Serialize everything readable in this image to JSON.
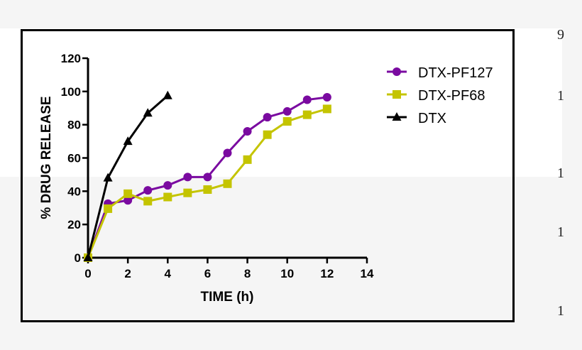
{
  "chart_data": {
    "type": "line",
    "title": "",
    "xlabel": "TIME (h)",
    "ylabel": "% DRUG RELEASE",
    "xlim": [
      0,
      14
    ],
    "ylim": [
      0,
      120
    ],
    "xticks": [
      0,
      2,
      4,
      6,
      8,
      10,
      12,
      14
    ],
    "yticks": [
      0,
      20,
      40,
      60,
      80,
      100,
      120
    ],
    "grid": false,
    "legend_position": "top-right",
    "series": [
      {
        "name": "DTX-PF127",
        "marker": "circle",
        "color": "#7a0aa0",
        "x": [
          0,
          1,
          2,
          3,
          4,
          5,
          6,
          7,
          8,
          9,
          10,
          11,
          12
        ],
        "values": [
          0,
          32.5,
          34.5,
          40.5,
          43.5,
          48.5,
          48.5,
          63,
          76,
          84.5,
          88,
          95,
          96.5
        ]
      },
      {
        "name": "DTX-PF68",
        "marker": "square",
        "color": "#c4c400",
        "x": [
          0,
          1,
          2,
          3,
          4,
          5,
          6,
          7,
          8,
          9,
          10,
          11,
          12
        ],
        "values": [
          0,
          29.5,
          38.5,
          34,
          36.5,
          39,
          41,
          44.5,
          59,
          74,
          82,
          86,
          89.5
        ]
      },
      {
        "name": "DTX",
        "marker": "triangle",
        "color": "#000000",
        "x": [
          0,
          1,
          2,
          3,
          4
        ],
        "values": [
          0,
          48,
          70,
          87,
          97.5
        ]
      }
    ]
  },
  "side_fragments": [
    "9",
    "1",
    "1",
    "1",
    "1"
  ]
}
